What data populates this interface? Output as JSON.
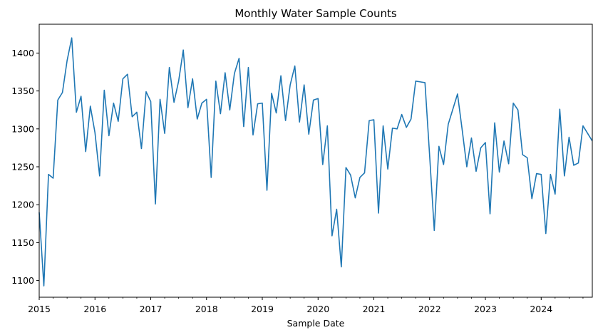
{
  "chart_data": {
    "type": "line",
    "title": "Monthly Water Sample Counts",
    "xlabel": "Sample Date",
    "ylabel": "",
    "xlim": [
      "2015-01",
      "2024-12"
    ],
    "ylim": [
      1078,
      1438
    ],
    "grid": false,
    "line_color": "#1f77b4",
    "x_ticks": [
      "2015",
      "2016",
      "2017",
      "2018",
      "2019",
      "2020",
      "2021",
      "2022",
      "2023",
      "2024"
    ],
    "y_ticks": [
      1100,
      1150,
      1200,
      1250,
      1300,
      1350,
      1400
    ],
    "series": [
      {
        "x": [
          "2015-01",
          "2015-02",
          "2015-03",
          "2015-04",
          "2015-05",
          "2015-06",
          "2015-07",
          "2015-08",
          "2015-09",
          "2015-10",
          "2015-11",
          "2015-12",
          "2016-01",
          "2016-02",
          "2016-03",
          "2016-04",
          "2016-05",
          "2016-06",
          "2016-07",
          "2016-08",
          "2016-09",
          "2016-10",
          "2016-11",
          "2016-12",
          "2017-01",
          "2017-02",
          "2017-03",
          "2017-04",
          "2017-05",
          "2017-06",
          "2017-07",
          "2017-08",
          "2017-09",
          "2017-10",
          "2017-11",
          "2017-12",
          "2018-01",
          "2018-02",
          "2018-03",
          "2018-04",
          "2018-05",
          "2018-06",
          "2018-07",
          "2018-08",
          "2018-09",
          "2018-10",
          "2018-11",
          "2018-12",
          "2019-01",
          "2019-02",
          "2019-03",
          "2019-04",
          "2019-05",
          "2019-06",
          "2019-07",
          "2019-08",
          "2019-09",
          "2019-10",
          "2019-11",
          "2019-12",
          "2020-01",
          "2020-02",
          "2020-03",
          "2020-04",
          "2020-05",
          "2020-06",
          "2020-07",
          "2020-08",
          "2020-09",
          "2020-10",
          "2020-11",
          "2020-12",
          "2021-01",
          "2021-02",
          "2021-03",
          "2021-04",
          "2021-05",
          "2021-06",
          "2021-07",
          "2021-08",
          "2021-09",
          "2021-10",
          "2021-11",
          "2021-12",
          "2022-01",
          "2022-02",
          "2022-03",
          "2022-04",
          "2022-05",
          "2022-06",
          "2022-07",
          "2022-08",
          "2022-09",
          "2022-10",
          "2022-11",
          "2022-12",
          "2023-01",
          "2023-02",
          "2023-03",
          "2023-04",
          "2023-05",
          "2023-06",
          "2023-07",
          "2023-08",
          "2023-09",
          "2023-10",
          "2023-11",
          "2023-12",
          "2024-01",
          "2024-02",
          "2024-03",
          "2024-04",
          "2024-05",
          "2024-06",
          "2024-07",
          "2024-08",
          "2024-09",
          "2024-10",
          "2024-11",
          "2024-12"
        ],
        "values": [
          1190,
          1093,
          1240,
          1235,
          1338,
          1348,
          1390,
          1420,
          1322,
          1343,
          1270,
          1330,
          1295,
          1238,
          1351,
          1291,
          1334,
          1310,
          1366,
          1372,
          1316,
          1322,
          1274,
          1349,
          1336,
          1201,
          1339,
          1294,
          1381,
          1335,
          1363,
          1404,
          1328,
          1366,
          1313,
          1334,
          1339,
          1236,
          1363,
          1320,
          1374,
          1325,
          1373,
          1393,
          1303,
          1381,
          1292,
          1333,
          1334,
          1219,
          1347,
          1321,
          1370,
          1311,
          1358,
          1383,
          1309,
          1358,
          1293,
          1338,
          1340,
          1253,
          1304,
          1159,
          1194,
          1118,
          1249,
          1239,
          1209,
          1236,
          1242,
          1311,
          1312,
          1189,
          1304,
          1247,
          1301,
          1300,
          1319,
          1302,
          1313,
          1363,
          1362,
          1361,
          1265,
          1166,
          1277,
          1253,
          1306,
          1326,
          1346,
          1299,
          1250,
          1288,
          1244,
          1275,
          1282,
          1188,
          1308,
          1243,
          1284,
          1254,
          1334,
          1325,
          1266,
          1262,
          1208,
          1241,
          1240,
          1162,
          1240,
          1214,
          1326,
          1238,
          1289,
          1252,
          1255,
          1304,
          1294,
          1284
        ]
      }
    ]
  }
}
